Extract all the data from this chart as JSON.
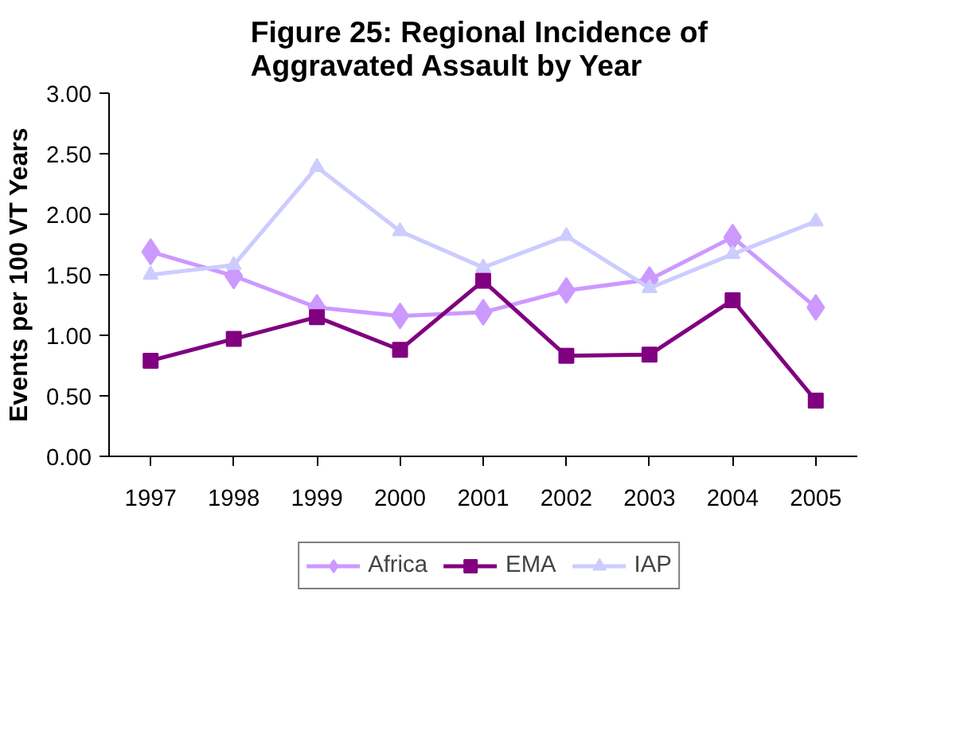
{
  "chart_data": {
    "type": "line",
    "title": "Figure 25:  Regional Incidence of\nAggravated Assault by Year",
    "ylabel": "Events per 100 VT Years",
    "categories": [
      "1997",
      "1998",
      "1999",
      "2000",
      "2001",
      "2002",
      "2003",
      "2004",
      "2005"
    ],
    "series": [
      {
        "name": "Africa",
        "color": "#cc99ff",
        "marker": "diamond",
        "values": [
          1.69,
          1.49,
          1.23,
          1.16,
          1.19,
          1.37,
          1.46,
          1.81,
          1.23
        ]
      },
      {
        "name": "EMA",
        "color": "#800080",
        "marker": "square",
        "values": [
          0.79,
          0.97,
          1.15,
          0.88,
          1.45,
          0.83,
          0.84,
          1.29,
          0.46
        ]
      },
      {
        "name": "IAP",
        "color": "#ccccff",
        "marker": "triangle",
        "values": [
          1.5,
          1.58,
          2.39,
          1.86,
          1.56,
          1.82,
          1.39,
          1.67,
          1.94
        ]
      }
    ],
    "ylim": [
      0,
      3
    ],
    "yticks": [
      {
        "value": 0,
        "label": "0.00"
      },
      {
        "value": 0.5,
        "label": "0.50"
      },
      {
        "value": 1,
        "label": "1.00"
      },
      {
        "value": 1.5,
        "label": "1.50"
      },
      {
        "value": 2,
        "label": "2.00"
      },
      {
        "value": 2.5,
        "label": "2.50"
      },
      {
        "value": 3,
        "label": "3.00"
      }
    ],
    "grid": false,
    "legend": "bottom"
  }
}
